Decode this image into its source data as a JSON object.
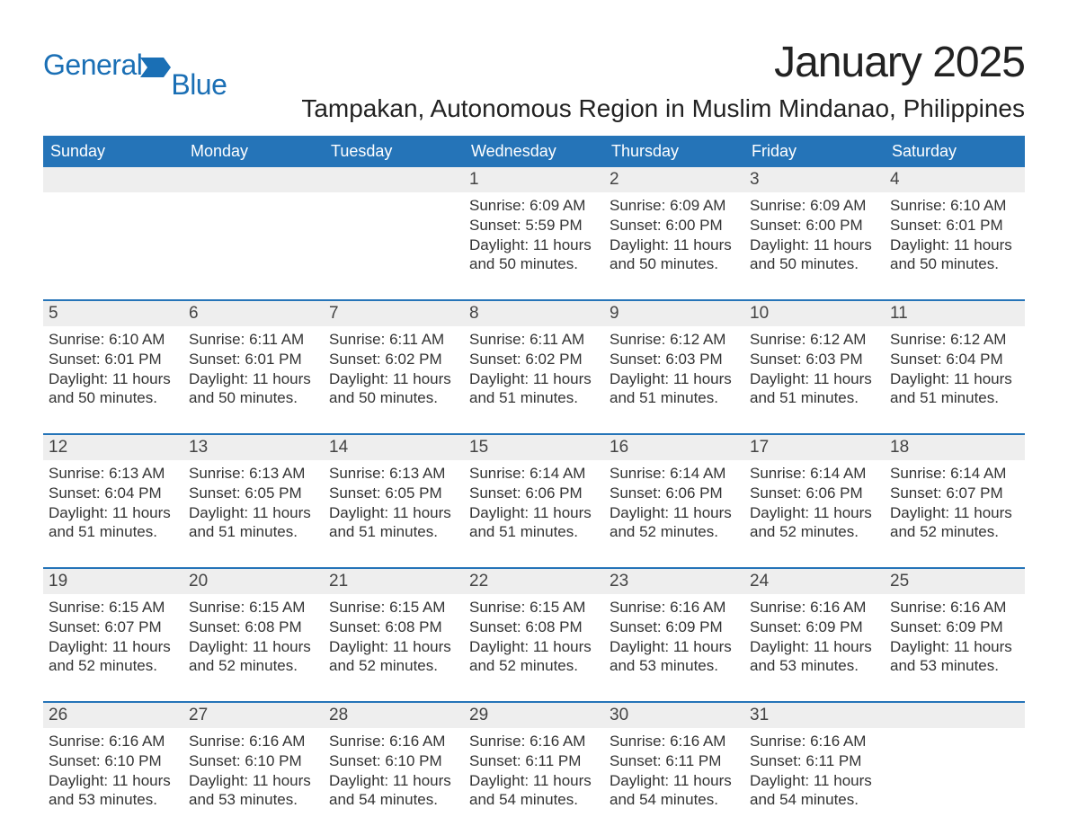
{
  "logo": {
    "text1": "General",
    "text2": "Blue",
    "shape_color": "#1a6fb5"
  },
  "title": "January 2025",
  "location": "Tampakan, Autonomous Region in Muslim Mindanao, Philippines",
  "colors": {
    "header_bg": "#2574b8",
    "header_text": "#ffffff",
    "daynum_bg": "#eeeeee",
    "body_text": "#333333",
    "rule": "#2574b8",
    "page_bg": "#ffffff"
  },
  "typography": {
    "title_fontsize": 48,
    "location_fontsize": 28,
    "weekday_fontsize": 18,
    "daynum_fontsize": 19,
    "cell_fontsize": 17
  },
  "weekdays": [
    "Sunday",
    "Monday",
    "Tuesday",
    "Wednesday",
    "Thursday",
    "Friday",
    "Saturday"
  ],
  "weeks": [
    [
      {
        "day": "",
        "sunrise": "",
        "sunset": "",
        "daylight": ""
      },
      {
        "day": "",
        "sunrise": "",
        "sunset": "",
        "daylight": ""
      },
      {
        "day": "",
        "sunrise": "",
        "sunset": "",
        "daylight": ""
      },
      {
        "day": "1",
        "sunrise": "Sunrise: 6:09 AM",
        "sunset": "Sunset: 5:59 PM",
        "daylight": "Daylight: 11 hours and 50 minutes."
      },
      {
        "day": "2",
        "sunrise": "Sunrise: 6:09 AM",
        "sunset": "Sunset: 6:00 PM",
        "daylight": "Daylight: 11 hours and 50 minutes."
      },
      {
        "day": "3",
        "sunrise": "Sunrise: 6:09 AM",
        "sunset": "Sunset: 6:00 PM",
        "daylight": "Daylight: 11 hours and 50 minutes."
      },
      {
        "day": "4",
        "sunrise": "Sunrise: 6:10 AM",
        "sunset": "Sunset: 6:01 PM",
        "daylight": "Daylight: 11 hours and 50 minutes."
      }
    ],
    [
      {
        "day": "5",
        "sunrise": "Sunrise: 6:10 AM",
        "sunset": "Sunset: 6:01 PM",
        "daylight": "Daylight: 11 hours and 50 minutes."
      },
      {
        "day": "6",
        "sunrise": "Sunrise: 6:11 AM",
        "sunset": "Sunset: 6:01 PM",
        "daylight": "Daylight: 11 hours and 50 minutes."
      },
      {
        "day": "7",
        "sunrise": "Sunrise: 6:11 AM",
        "sunset": "Sunset: 6:02 PM",
        "daylight": "Daylight: 11 hours and 50 minutes."
      },
      {
        "day": "8",
        "sunrise": "Sunrise: 6:11 AM",
        "sunset": "Sunset: 6:02 PM",
        "daylight": "Daylight: 11 hours and 51 minutes."
      },
      {
        "day": "9",
        "sunrise": "Sunrise: 6:12 AM",
        "sunset": "Sunset: 6:03 PM",
        "daylight": "Daylight: 11 hours and 51 minutes."
      },
      {
        "day": "10",
        "sunrise": "Sunrise: 6:12 AM",
        "sunset": "Sunset: 6:03 PM",
        "daylight": "Daylight: 11 hours and 51 minutes."
      },
      {
        "day": "11",
        "sunrise": "Sunrise: 6:12 AM",
        "sunset": "Sunset: 6:04 PM",
        "daylight": "Daylight: 11 hours and 51 minutes."
      }
    ],
    [
      {
        "day": "12",
        "sunrise": "Sunrise: 6:13 AM",
        "sunset": "Sunset: 6:04 PM",
        "daylight": "Daylight: 11 hours and 51 minutes."
      },
      {
        "day": "13",
        "sunrise": "Sunrise: 6:13 AM",
        "sunset": "Sunset: 6:05 PM",
        "daylight": "Daylight: 11 hours and 51 minutes."
      },
      {
        "day": "14",
        "sunrise": "Sunrise: 6:13 AM",
        "sunset": "Sunset: 6:05 PM",
        "daylight": "Daylight: 11 hours and 51 minutes."
      },
      {
        "day": "15",
        "sunrise": "Sunrise: 6:14 AM",
        "sunset": "Sunset: 6:06 PM",
        "daylight": "Daylight: 11 hours and 51 minutes."
      },
      {
        "day": "16",
        "sunrise": "Sunrise: 6:14 AM",
        "sunset": "Sunset: 6:06 PM",
        "daylight": "Daylight: 11 hours and 52 minutes."
      },
      {
        "day": "17",
        "sunrise": "Sunrise: 6:14 AM",
        "sunset": "Sunset: 6:06 PM",
        "daylight": "Daylight: 11 hours and 52 minutes."
      },
      {
        "day": "18",
        "sunrise": "Sunrise: 6:14 AM",
        "sunset": "Sunset: 6:07 PM",
        "daylight": "Daylight: 11 hours and 52 minutes."
      }
    ],
    [
      {
        "day": "19",
        "sunrise": "Sunrise: 6:15 AM",
        "sunset": "Sunset: 6:07 PM",
        "daylight": "Daylight: 11 hours and 52 minutes."
      },
      {
        "day": "20",
        "sunrise": "Sunrise: 6:15 AM",
        "sunset": "Sunset: 6:08 PM",
        "daylight": "Daylight: 11 hours and 52 minutes."
      },
      {
        "day": "21",
        "sunrise": "Sunrise: 6:15 AM",
        "sunset": "Sunset: 6:08 PM",
        "daylight": "Daylight: 11 hours and 52 minutes."
      },
      {
        "day": "22",
        "sunrise": "Sunrise: 6:15 AM",
        "sunset": "Sunset: 6:08 PM",
        "daylight": "Daylight: 11 hours and 52 minutes."
      },
      {
        "day": "23",
        "sunrise": "Sunrise: 6:16 AM",
        "sunset": "Sunset: 6:09 PM",
        "daylight": "Daylight: 11 hours and 53 minutes."
      },
      {
        "day": "24",
        "sunrise": "Sunrise: 6:16 AM",
        "sunset": "Sunset: 6:09 PM",
        "daylight": "Daylight: 11 hours and 53 minutes."
      },
      {
        "day": "25",
        "sunrise": "Sunrise: 6:16 AM",
        "sunset": "Sunset: 6:09 PM",
        "daylight": "Daylight: 11 hours and 53 minutes."
      }
    ],
    [
      {
        "day": "26",
        "sunrise": "Sunrise: 6:16 AM",
        "sunset": "Sunset: 6:10 PM",
        "daylight": "Daylight: 11 hours and 53 minutes."
      },
      {
        "day": "27",
        "sunrise": "Sunrise: 6:16 AM",
        "sunset": "Sunset: 6:10 PM",
        "daylight": "Daylight: 11 hours and 53 minutes."
      },
      {
        "day": "28",
        "sunrise": "Sunrise: 6:16 AM",
        "sunset": "Sunset: 6:10 PM",
        "daylight": "Daylight: 11 hours and 54 minutes."
      },
      {
        "day": "29",
        "sunrise": "Sunrise: 6:16 AM",
        "sunset": "Sunset: 6:11 PM",
        "daylight": "Daylight: 11 hours and 54 minutes."
      },
      {
        "day": "30",
        "sunrise": "Sunrise: 6:16 AM",
        "sunset": "Sunset: 6:11 PM",
        "daylight": "Daylight: 11 hours and 54 minutes."
      },
      {
        "day": "31",
        "sunrise": "Sunrise: 6:16 AM",
        "sunset": "Sunset: 6:11 PM",
        "daylight": "Daylight: 11 hours and 54 minutes."
      },
      {
        "day": "",
        "sunrise": "",
        "sunset": "",
        "daylight": ""
      }
    ]
  ]
}
